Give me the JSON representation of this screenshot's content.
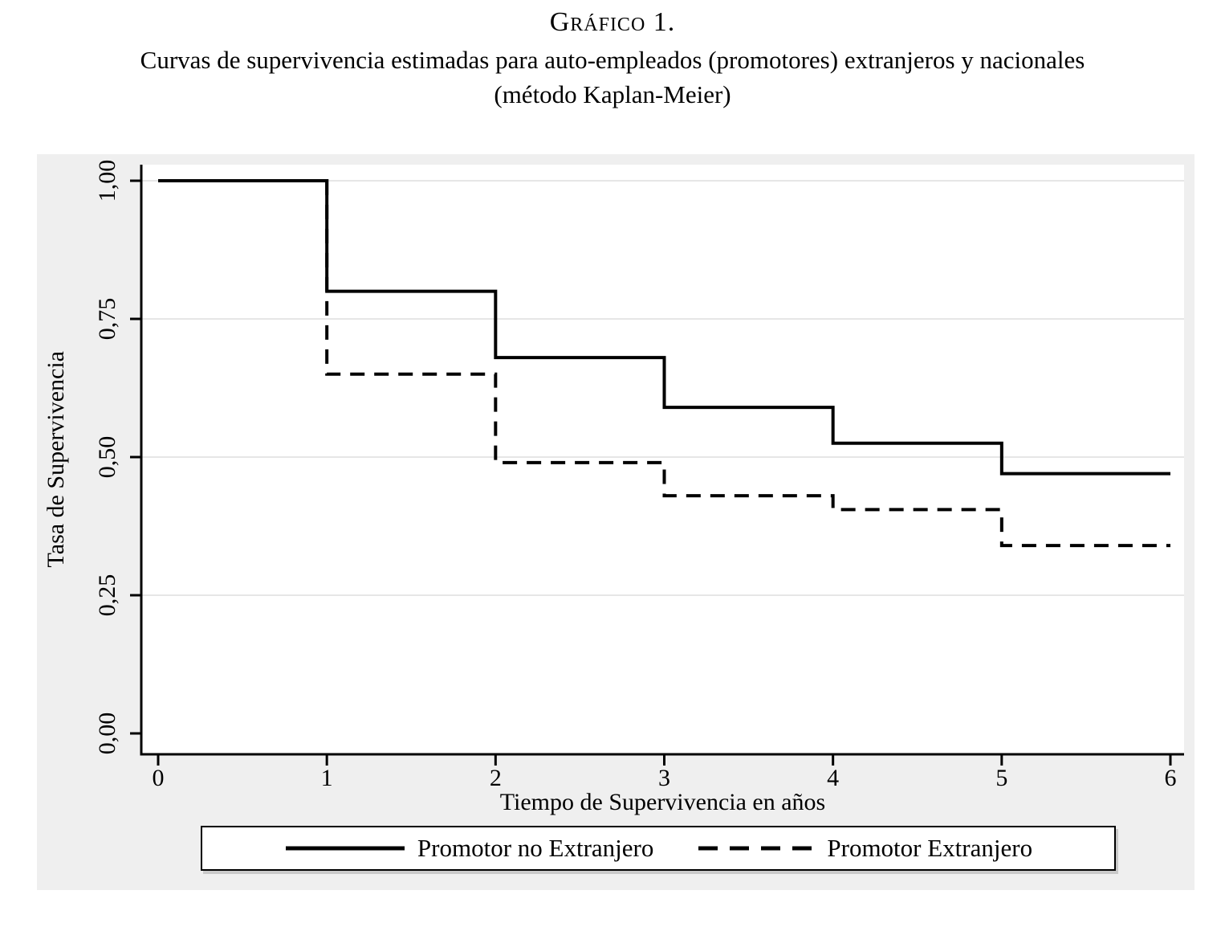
{
  "title": {
    "caption": "Gráfico 1.",
    "line2": "Curvas de supervivencia estimadas para auto-empleados (promotores) extranjeros y nacionales",
    "line3": "(método Kaplan-Meier)"
  },
  "chart_data": {
    "type": "line",
    "subtype": "kaplan-meier-step",
    "title": "Gráfico 1. Curvas de supervivencia estimadas para auto-empleados (promotores) extranjeros y nacionales (método Kaplan-Meier)",
    "xlabel": "Tiempo de Supervivencia en años",
    "ylabel": "Tasa de Supervivencia",
    "xlim": [
      0,
      6
    ],
    "ylim": [
      0,
      1
    ],
    "x_ticks": [
      0,
      1,
      2,
      3,
      4,
      5,
      6
    ],
    "x_tick_labels": [
      "0",
      "1",
      "2",
      "3",
      "4",
      "5",
      "6"
    ],
    "y_ticks": [
      1.0,
      0.75,
      0.5,
      0.25,
      0.0
    ],
    "y_tick_labels": [
      "1,00",
      "0,75",
      "0,50",
      "0,25",
      "0,00"
    ],
    "grid": "horizontal gridlines at y ticks",
    "legend_position": "bottom boxed",
    "series": [
      {
        "name": "Promotor no Extranjero",
        "line_style": "solid",
        "color": "#000000",
        "step_x": [
          0,
          1,
          2,
          3,
          4,
          5
        ],
        "step_y": [
          1.0,
          0.8,
          0.68,
          0.59,
          0.525,
          0.47
        ],
        "x_end": 6
      },
      {
        "name": "Promotor Extranjero",
        "line_style": "dashed",
        "color": "#000000",
        "step_x": [
          0,
          1,
          2,
          3,
          4,
          5
        ],
        "step_y": [
          1.0,
          0.65,
          0.49,
          0.43,
          0.405,
          0.34
        ],
        "x_end": 6
      }
    ]
  },
  "colors": {
    "page_bg": "#ffffff",
    "figure_bg": "#efefef",
    "plot_bg": "#ffffff",
    "gridline": "#e6e6e6",
    "axis": "#000000",
    "curve": "#000000",
    "legend_bg": "#ffffff",
    "legend_border": "#000000",
    "legend_shadow": "#c9c9c9"
  }
}
